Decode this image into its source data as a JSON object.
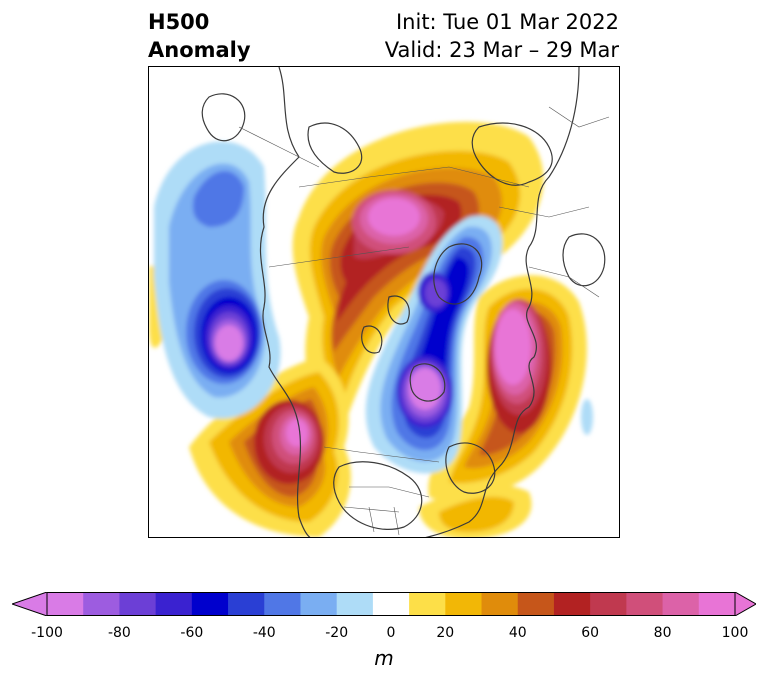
{
  "title": {
    "left_line1": "H500",
    "left_line2": "Anomaly",
    "right_line1": "Init: Tue 01 Mar 2022",
    "right_line2": "Valid: 23 Mar – 29 Mar"
  },
  "map": {
    "projection": "north-polar-stereographic",
    "field": "500 hPa geopotential height anomaly",
    "features": [
      {
        "name": "ridge-greenland-north-america-arctic",
        "sign": "positive",
        "peak_m": 100
      },
      {
        "name": "trough-central-arctic-siberia",
        "sign": "negative",
        "peak_m": -80
      },
      {
        "name": "ridge-western-europe-north-atlantic",
        "sign": "positive",
        "peak_m": 100
      },
      {
        "name": "trough-eastern-europe-western-russia",
        "sign": "negative",
        "peak_m": -100
      },
      {
        "name": "trough-north-pacific",
        "sign": "negative",
        "peak_m": -100
      },
      {
        "name": "ridge-east-asia-japan",
        "sign": "positive",
        "peak_m": 100
      }
    ]
  },
  "colorbar": {
    "levels": [
      -100,
      -90,
      -80,
      -70,
      -60,
      -50,
      -40,
      -30,
      -20,
      -10,
      10,
      20,
      30,
      40,
      50,
      60,
      70,
      80,
      90,
      100
    ],
    "colors": [
      "#d97be6",
      "#9d5ce0",
      "#6c3fd6",
      "#3a22d0",
      "#0000cd",
      "#2a3fd4",
      "#5077e6",
      "#7aaef2",
      "#aedcf7",
      "#ffffff",
      "#fddf48",
      "#f2b706",
      "#e08c0b",
      "#c6561a",
      "#b22222",
      "#c0394f",
      "#d04f7a",
      "#dc62a8",
      "#e874d6"
    ],
    "extend_low_color": "#d97be6",
    "extend_high_color": "#e874d6",
    "tick_values": [
      -100,
      -80,
      -60,
      -40,
      -20,
      0,
      20,
      40,
      60,
      80,
      100
    ],
    "tick_labels": [
      "-100",
      "-80",
      "-60",
      "-40",
      "-20",
      "0",
      "20",
      "40",
      "60",
      "80",
      "100"
    ],
    "units": "m"
  }
}
